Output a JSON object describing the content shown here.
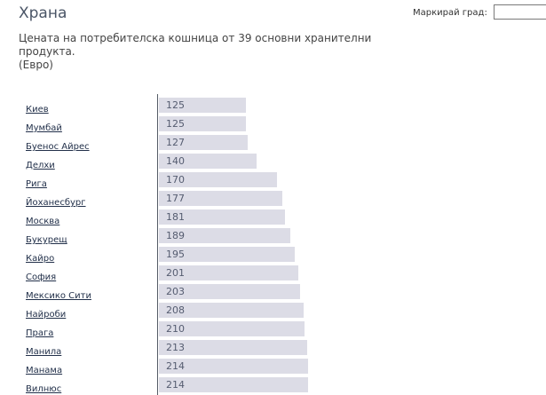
{
  "header": {
    "title": "Храна",
    "highlight_label": "Маркирай град:",
    "highlight_value": ""
  },
  "subtitle": {
    "line1": "Цената на потребителска кошница от 39 основни хранителни",
    "line2": "продукта.",
    "line3": "(Евро)"
  },
  "chart_data": {
    "type": "bar",
    "orientation": "horizontal",
    "title": "Храна",
    "subtitle": "Цената на потребителска кошница от 39 основни хранителни продукта.",
    "unit": "(Евро)",
    "categories": [
      "Киев",
      "Мумбай",
      "Буенос Айрес",
      "Делхи",
      "Рига",
      "Йоханесбург",
      "Москва",
      "Букурещ",
      "Кайро",
      "София",
      "Мексико Сити",
      "Найроби",
      "Прага",
      "Манила",
      "Манама",
      "Вилнюс"
    ],
    "values": [
      125,
      125,
      127,
      140,
      170,
      177,
      181,
      189,
      195,
      201,
      203,
      208,
      210,
      213,
      214,
      214
    ],
    "value_labels": [
      "125",
      "125",
      "127",
      "140",
      "170",
      "177",
      "181",
      "189",
      "195",
      "201",
      "203",
      "208",
      "210",
      "213",
      "214",
      "214"
    ],
    "bar_color": "#dcdce6",
    "link_color": "#22304a",
    "grid": false
  }
}
